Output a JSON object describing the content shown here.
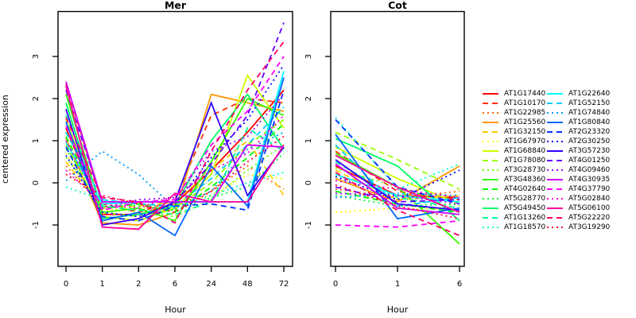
{
  "chart_data": {
    "type": "line",
    "title": "",
    "xlabel": "Hour",
    "ylabel": "centered expression",
    "yticks": [
      -1,
      0,
      1,
      2,
      3
    ],
    "ylim": [
      -1.95,
      4.05
    ],
    "grid": false,
    "legend_position": "right-outside",
    "panels": [
      {
        "title": "Mer",
        "x_tick_labels": [
          "0",
          "1",
          "2",
          "6",
          "24",
          "48",
          "72"
        ],
        "x_spacing": "equally-spaced-categories"
      },
      {
        "title": "Cot",
        "x_tick_labels": [
          "0",
          "1",
          "6"
        ],
        "x_spacing": "equally-spaced-categories"
      }
    ],
    "series": [
      {
        "name": "AT1G17440",
        "color": "#FF0000",
        "linetype": "solid",
        "mer": [
          1.3,
          -0.75,
          -0.75,
          -0.5,
          0.3,
          1.2,
          2.2
        ],
        "cot": [
          0.4,
          -0.3,
          -0.35
        ]
      },
      {
        "name": "AT1G10170",
        "color": "#FF3300",
        "linetype": "dashed",
        "mer": [
          2.35,
          -0.5,
          -0.7,
          -0.4,
          1.6,
          2.0,
          1.9
        ],
        "cot": [
          0.75,
          -0.2,
          -0.4
        ]
      },
      {
        "name": "AT1G22985",
        "color": "#FF6600",
        "linetype": "dotted",
        "mer": [
          0.4,
          -0.55,
          -0.65,
          -0.55,
          -0.2,
          0.4,
          -0.15
        ],
        "cot": [
          -0.15,
          -0.35,
          -0.2
        ]
      },
      {
        "name": "AT1G25560",
        "color": "#FF9900",
        "linetype": "solid",
        "mer": [
          1.05,
          -0.95,
          -1.0,
          -0.7,
          2.1,
          1.9,
          1.7
        ],
        "cot": [
          0.1,
          -0.45,
          0.4
        ]
      },
      {
        "name": "AT1G32150",
        "color": "#FFCC00",
        "linetype": "dashed",
        "mer": [
          0.5,
          -0.6,
          -0.55,
          -0.45,
          0.3,
          1.0,
          -0.3
        ],
        "cot": [
          0.3,
          -0.4,
          -0.3
        ]
      },
      {
        "name": "AT1G67970",
        "color": "#FFFF00",
        "linetype": "dotted",
        "mer": [
          0.7,
          -0.65,
          -0.6,
          -0.5,
          -0.3,
          0.2,
          0.1
        ],
        "cot": [
          -0.7,
          -0.6,
          -0.65
        ]
      },
      {
        "name": "AT1G68840",
        "color": "#CCFF00",
        "linetype": "solid",
        "mer": [
          1.5,
          -0.8,
          -0.9,
          -0.6,
          0.2,
          2.55,
          1.3
        ],
        "cot": [
          0.85,
          0.1,
          -0.5
        ]
      },
      {
        "name": "AT1G78080",
        "color": "#99FF00",
        "linetype": "dashed",
        "mer": [
          0.9,
          -0.7,
          -0.8,
          -0.6,
          0.0,
          0.9,
          1.5
        ],
        "cot": [
          1.2,
          0.55,
          -0.15
        ]
      },
      {
        "name": "AT3G28730",
        "color": "#66FF00",
        "linetype": "dotted",
        "mer": [
          0.6,
          -0.5,
          -0.7,
          -0.8,
          -0.4,
          0.3,
          0.9
        ],
        "cot": [
          0.35,
          -0.1,
          -0.55
        ]
      },
      {
        "name": "AT3G48360",
        "color": "#33FF00",
        "linetype": "solid",
        "mer": [
          2.1,
          -0.7,
          -0.6,
          -0.9,
          0.5,
          2.0,
          1.6
        ],
        "cot": [
          0.7,
          -0.1,
          -1.45
        ]
      },
      {
        "name": "AT4G02640",
        "color": "#00FF00",
        "linetype": "dashed",
        "mer": [
          1.1,
          -0.6,
          -0.5,
          -0.7,
          -0.1,
          0.6,
          1.4
        ],
        "cot": [
          -0.2,
          -0.5,
          -0.7
        ]
      },
      {
        "name": "AT5G28770",
        "color": "#00FF33",
        "linetype": "dotted",
        "mer": [
          0.8,
          -0.45,
          -0.55,
          -0.65,
          -0.35,
          -0.1,
          0.7
        ],
        "cot": [
          -0.3,
          -0.55,
          -0.5
        ]
      },
      {
        "name": "AT5G49450",
        "color": "#00FF66",
        "linetype": "solid",
        "mer": [
          1.9,
          -0.85,
          -0.75,
          -0.55,
          1.0,
          2.1,
          0.8
        ],
        "cot": [
          1.05,
          0.4,
          -0.9
        ]
      },
      {
        "name": "AT1G13260",
        "color": "#00FF99",
        "linetype": "dashed",
        "mer": [
          1.6,
          -0.55,
          -0.65,
          -0.75,
          -0.45,
          1.3,
          0.75
        ],
        "cot": [
          0.5,
          -0.35,
          -0.6
        ]
      },
      {
        "name": "AT1G18570",
        "color": "#00FFCC",
        "linetype": "dotted",
        "mer": [
          -0.1,
          -0.4,
          -0.5,
          -0.6,
          -0.3,
          0.0,
          0.25
        ],
        "cot": [
          1.55,
          -0.15,
          0.45
        ]
      },
      {
        "name": "AT1G22640",
        "color": "#00FFFF",
        "linetype": "solid",
        "mer": [
          0.95,
          -0.5,
          -0.45,
          -0.45,
          -0.45,
          -0.45,
          2.65
        ],
        "cot": [
          0.2,
          -0.3,
          -0.45
        ]
      },
      {
        "name": "AT1G52150",
        "color": "#00CCFF",
        "linetype": "dashed",
        "mer": [
          1.2,
          -0.4,
          -0.5,
          -0.55,
          0.1,
          0.9,
          1.8
        ],
        "cot": [
          0.9,
          -0.55,
          -0.35
        ]
      },
      {
        "name": "AT1G74840",
        "color": "#0099FF",
        "linetype": "dotted",
        "mer": [
          0.05,
          0.75,
          0.2,
          -0.6,
          -0.2,
          0.8,
          1.2
        ],
        "cot": [
          -0.35,
          -0.25,
          -0.3
        ]
      },
      {
        "name": "AT1G80840",
        "color": "#0066FF",
        "linetype": "solid",
        "mer": [
          1.45,
          -0.9,
          -0.7,
          -1.25,
          0.4,
          -0.55,
          2.5
        ],
        "cot": [
          1.15,
          -0.85,
          -0.6
        ]
      },
      {
        "name": "AT2G23320",
        "color": "#0033FF",
        "linetype": "dashed",
        "mer": [
          0.85,
          -0.8,
          -0.9,
          -0.55,
          -0.5,
          -0.65,
          2.2
        ],
        "cot": [
          1.5,
          -0.1,
          -0.5
        ]
      },
      {
        "name": "AT2G30250",
        "color": "#0000FF",
        "linetype": "dotted",
        "mer": [
          0.65,
          -0.7,
          -0.8,
          -0.5,
          0.6,
          1.5,
          2.8
        ],
        "cot": [
          0.15,
          -0.4,
          0.3
        ]
      },
      {
        "name": "AT3G57230",
        "color": "#3300FF",
        "linetype": "solid",
        "mer": [
          1.75,
          -1.0,
          -0.85,
          -0.45,
          1.9,
          -0.3,
          0.85
        ],
        "cot": [
          0.55,
          -0.5,
          -0.65
        ]
      },
      {
        "name": "AT4G01250",
        "color": "#6600FF",
        "linetype": "dashed",
        "mer": [
          2.2,
          -0.45,
          -0.45,
          -0.45,
          0.45,
          1.6,
          3.8
        ],
        "cot": [
          -0.1,
          -0.45,
          -0.4
        ]
      },
      {
        "name": "AT4G09460",
        "color": "#9900FF",
        "linetype": "dotted",
        "mer": [
          1.0,
          -0.6,
          -0.4,
          -0.35,
          0.75,
          1.1,
          2.1
        ],
        "cot": [
          -0.25,
          -0.3,
          -0.5
        ]
      },
      {
        "name": "AT4G30935",
        "color": "#CC00FF",
        "linetype": "solid",
        "mer": [
          2.4,
          -0.45,
          -0.45,
          -0.45,
          -0.45,
          0.9,
          0.85
        ],
        "cot": [
          0.45,
          -0.6,
          -0.75
        ]
      },
      {
        "name": "AT4G37790",
        "color": "#FF00FF",
        "linetype": "dashed",
        "mer": [
          1.35,
          -0.65,
          -0.45,
          -0.4,
          0.9,
          1.7,
          3.0
        ],
        "cot": [
          -1.0,
          -1.05,
          -0.9
        ]
      },
      {
        "name": "AT5G02840",
        "color": "#FF00CC",
        "linetype": "dotted",
        "mer": [
          0.3,
          -0.5,
          -0.6,
          -0.3,
          0.3,
          0.7,
          1.6
        ],
        "cot": [
          0.05,
          -0.15,
          -0.35
        ]
      },
      {
        "name": "AT5G06100",
        "color": "#FF0099",
        "linetype": "solid",
        "mer": [
          2.3,
          -1.05,
          -1.1,
          -0.25,
          -0.45,
          -0.45,
          0.9
        ],
        "cot": [
          0.65,
          -0.1,
          -0.7
        ]
      },
      {
        "name": "AT5G22220",
        "color": "#FF0066",
        "linetype": "dashed",
        "mer": [
          1.55,
          -0.35,
          -0.45,
          -0.95,
          0.75,
          2.2,
          3.35
        ],
        "cot": [
          0.25,
          -0.65,
          -1.25
        ]
      },
      {
        "name": "AT3G19290",
        "color": "#FF0033",
        "linetype": "dotted",
        "mer": [
          0.2,
          -0.3,
          -0.5,
          -0.7,
          -0.2,
          0.5,
          1.1
        ],
        "cot": [
          -0.05,
          -0.55,
          -0.85
        ]
      }
    ],
    "legend_columns": 2,
    "axis_color": "#000000",
    "background_color": "#FFFFFF"
  }
}
